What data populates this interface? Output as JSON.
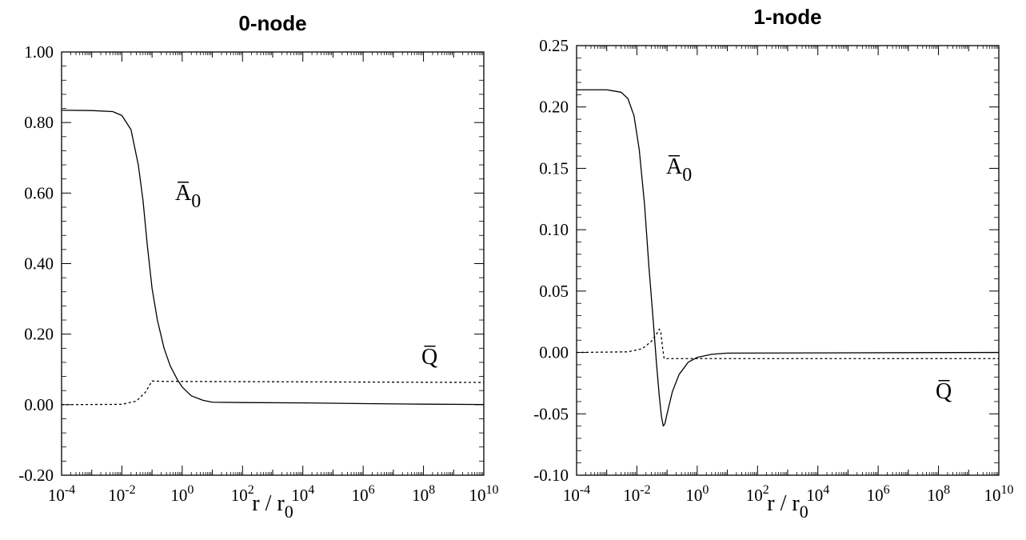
{
  "chart_data": [
    {
      "type": "line",
      "title": "0-node",
      "xscale": "log",
      "xlim": [
        0.0001,
        10000000000
      ],
      "ylim": [
        -0.2,
        1.0
      ],
      "xlabel": {
        "main": "r / r",
        "sub": "0"
      },
      "x_tick_labels": [
        {
          "base": "10",
          "exp": "-4"
        },
        {
          "base": "10",
          "exp": "-2"
        },
        {
          "base": "10",
          "exp": "0"
        },
        {
          "base": "10",
          "exp": "2"
        },
        {
          "base": "10",
          "exp": "4"
        },
        {
          "base": "10",
          "exp": "6"
        },
        {
          "base": "10",
          "exp": "8"
        },
        {
          "base": "10",
          "exp": "10"
        }
      ],
      "y_ticks": [
        -0.2,
        0.0,
        0.2,
        0.4,
        0.6,
        0.8,
        1.0
      ],
      "y_tick_labels": [
        "-0.20",
        "0.00",
        "0.20",
        "0.40",
        "0.60",
        "0.80",
        "1.00"
      ],
      "series": [
        {
          "name": "A̅",
          "label_sub": "0",
          "style": "solid",
          "points": [
            [
              0.0001,
              0.835
            ],
            [
              0.001,
              0.834
            ],
            [
              0.005,
              0.831
            ],
            [
              0.01,
              0.82
            ],
            [
              0.02,
              0.78
            ],
            [
              0.035,
              0.68
            ],
            [
              0.05,
              0.58
            ],
            [
              0.07,
              0.45
            ],
            [
              0.1,
              0.33
            ],
            [
              0.15,
              0.24
            ],
            [
              0.25,
              0.16
            ],
            [
              0.4,
              0.11
            ],
            [
              0.7,
              0.07
            ],
            [
              1.0,
              0.05
            ],
            [
              2.0,
              0.025
            ],
            [
              5.0,
              0.012
            ],
            [
              10.0,
              0.007
            ],
            [
              100.0,
              0.006
            ],
            [
              10000.0,
              0.005
            ],
            [
              1000000.0,
              0.003
            ],
            [
              100000000.0,
              0.0015
            ],
            [
              10000000000.0,
              0.0005
            ]
          ]
        },
        {
          "name": "Q̅",
          "style": "dotted",
          "points": [
            [
              0.0001,
              0.0
            ],
            [
              0.01,
              0.001
            ],
            [
              0.03,
              0.01
            ],
            [
              0.06,
              0.035
            ],
            [
              0.1,
              0.067
            ],
            [
              0.3,
              0.066
            ],
            [
              10000000000.0,
              0.063
            ]
          ]
        }
      ]
    },
    {
      "type": "line",
      "title": "1-node",
      "xscale": "log",
      "xlim": [
        0.0001,
        10000000000
      ],
      "ylim": [
        -0.1,
        0.25
      ],
      "xlabel": {
        "main": "r / r",
        "sub": "0"
      },
      "x_tick_labels": [
        {
          "base": "10",
          "exp": "-4"
        },
        {
          "base": "10",
          "exp": "-2"
        },
        {
          "base": "10",
          "exp": "0"
        },
        {
          "base": "10",
          "exp": "2"
        },
        {
          "base": "10",
          "exp": "4"
        },
        {
          "base": "10",
          "exp": "6"
        },
        {
          "base": "10",
          "exp": "8"
        },
        {
          "base": "10",
          "exp": "10"
        }
      ],
      "y_ticks": [
        -0.1,
        -0.05,
        0.0,
        0.05,
        0.1,
        0.15,
        0.2,
        0.25
      ],
      "y_tick_labels": [
        "-0.10",
        "-0.05",
        "0.00",
        "0.05",
        "0.10",
        "0.15",
        "0.20",
        "0.25"
      ],
      "series": [
        {
          "name": "A̅",
          "label_sub": "0",
          "style": "solid",
          "points": [
            [
              0.0001,
              0.214
            ],
            [
              0.001,
              0.214
            ],
            [
              0.003,
              0.212
            ],
            [
              0.005,
              0.207
            ],
            [
              0.008,
              0.193
            ],
            [
              0.012,
              0.165
            ],
            [
              0.018,
              0.12
            ],
            [
              0.025,
              0.07
            ],
            [
              0.035,
              0.025
            ],
            [
              0.045,
              -0.01
            ],
            [
              0.055,
              -0.035
            ],
            [
              0.065,
              -0.052
            ],
            [
              0.075,
              -0.06
            ],
            [
              0.085,
              -0.058
            ],
            [
              0.1,
              -0.05
            ],
            [
              0.15,
              -0.032
            ],
            [
              0.25,
              -0.018
            ],
            [
              0.5,
              -0.008
            ],
            [
              1.0,
              -0.004
            ],
            [
              3.0,
              -0.0015
            ],
            [
              10.0,
              -0.0005
            ],
            [
              10000000000.0,
              0.0
            ]
          ]
        },
        {
          "name": "Q̅",
          "style": "dotted",
          "points": [
            [
              0.0001,
              0.0
            ],
            [
              0.005,
              0.0005
            ],
            [
              0.015,
              0.003
            ],
            [
              0.03,
              0.009
            ],
            [
              0.045,
              0.015
            ],
            [
              0.055,
              0.019
            ],
            [
              0.062,
              0.017
            ],
            [
              0.07,
              0.005
            ],
            [
              0.08,
              -0.005
            ],
            [
              10000000000.0,
              -0.005
            ]
          ]
        }
      ]
    }
  ]
}
